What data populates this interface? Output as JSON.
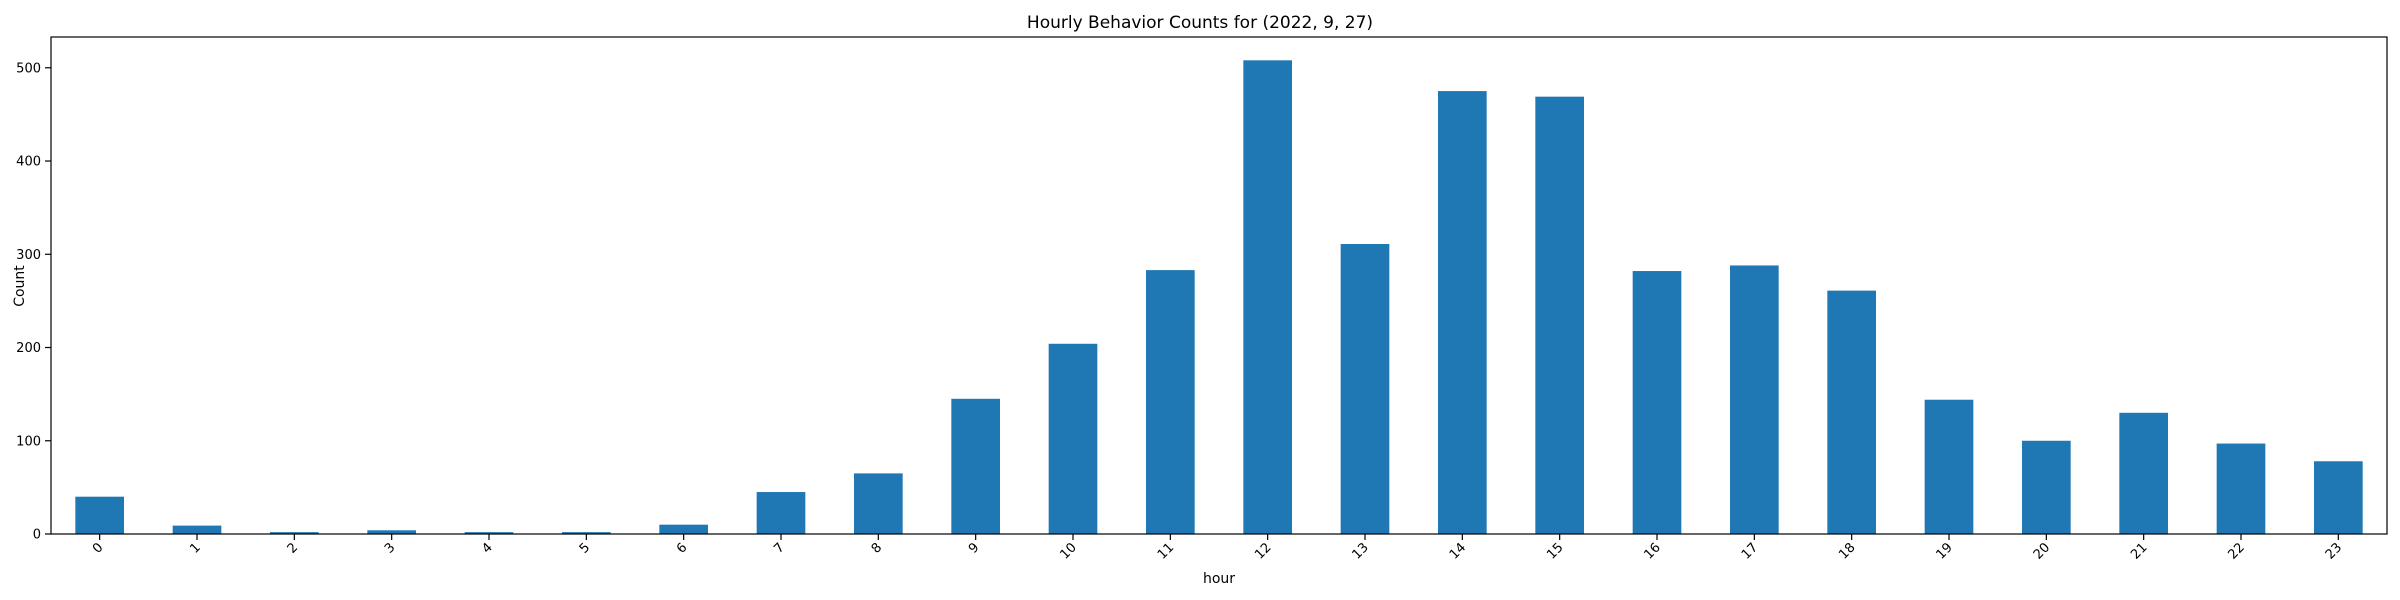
{
  "chart_data": {
    "type": "bar",
    "title": "Hourly Behavior Counts for (2022, 9, 27)",
    "xlabel": "hour",
    "ylabel": "Count",
    "categories": [
      "0",
      "1",
      "2",
      "3",
      "4",
      "5",
      "6",
      "7",
      "8",
      "9",
      "10",
      "11",
      "12",
      "13",
      "14",
      "15",
      "16",
      "17",
      "18",
      "19",
      "20",
      "21",
      "22",
      "23"
    ],
    "values": [
      40,
      9,
      2,
      4,
      2,
      2,
      10,
      45,
      65,
      145,
      204,
      283,
      508,
      311,
      475,
      469,
      282,
      288,
      261,
      144,
      100,
      130,
      97,
      78
    ],
    "ylim": [
      0,
      533
    ],
    "yticks": [
      0,
      100,
      200,
      300,
      400,
      500
    ],
    "bar_color": "#1f77b4",
    "grid": false,
    "legend": "none"
  }
}
